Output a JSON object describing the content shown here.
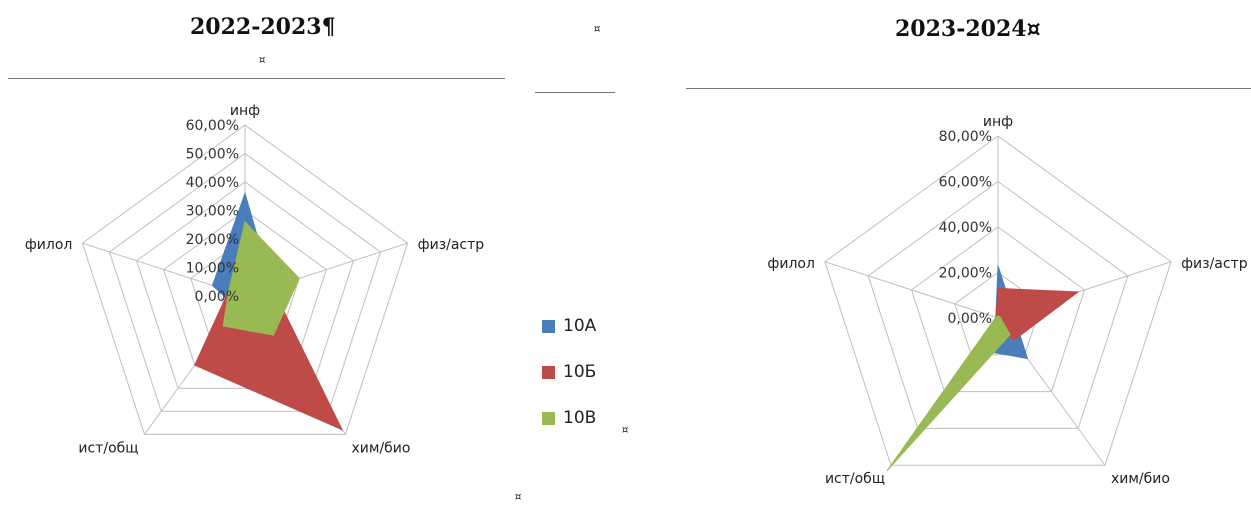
{
  "page": {
    "left_title": "2022-2023¶",
    "left_mark": "¤",
    "right_title": "2023-2024¤",
    "middle_mark_top": "¤",
    "legend_mark": "¤",
    "bottom_mark": "¤"
  },
  "legend": [
    {
      "name": "10А",
      "color": "#4a7ebb"
    },
    {
      "name": "10Б",
      "color": "#be4b48"
    },
    {
      "name": "10В",
      "color": "#98b954"
    }
  ],
  "chart_data": [
    {
      "type": "radar",
      "title": "2022-2023",
      "categories": [
        "инф",
        "физ/астр",
        "хим/био",
        "ист/общ",
        "филол"
      ],
      "tick_labels": [
        "0,00%",
        "10,00%",
        "20,00%",
        "30,00%",
        "40,00%",
        "50,00%",
        "60,00%"
      ],
      "rmax": 60,
      "series": [
        {
          "name": "10А",
          "values": [
            36,
            10,
            17,
            5,
            12
          ],
          "color": "#4a7ebb"
        },
        {
          "name": "10Б",
          "values": [
            10,
            10,
            58,
            30,
            6
          ],
          "color": "#be4b48"
        },
        {
          "name": "10В",
          "values": [
            26,
            20,
            17,
            13,
            6
          ],
          "color": "#98b954"
        }
      ]
    },
    {
      "type": "radar",
      "title": "2023-2024",
      "categories": [
        "инф",
        "физ/астр",
        "хим/био",
        "ист/общ",
        "филол"
      ],
      "tick_labels": [
        "0,00%",
        "20,00%",
        "40,00%",
        "60,00%",
        "80,00%"
      ],
      "rmax": 80,
      "series": [
        {
          "name": "10А",
          "values": [
            23,
            7,
            22,
            17,
            1
          ],
          "color": "#4a7ebb"
        },
        {
          "name": "10Б",
          "values": [
            13,
            37,
            12,
            3,
            1
          ],
          "color": "#be4b48"
        },
        {
          "name": "10В",
          "values": [
            1,
            1,
            9,
            83,
            1
          ],
          "color": "#98b954"
        }
      ]
    }
  ]
}
